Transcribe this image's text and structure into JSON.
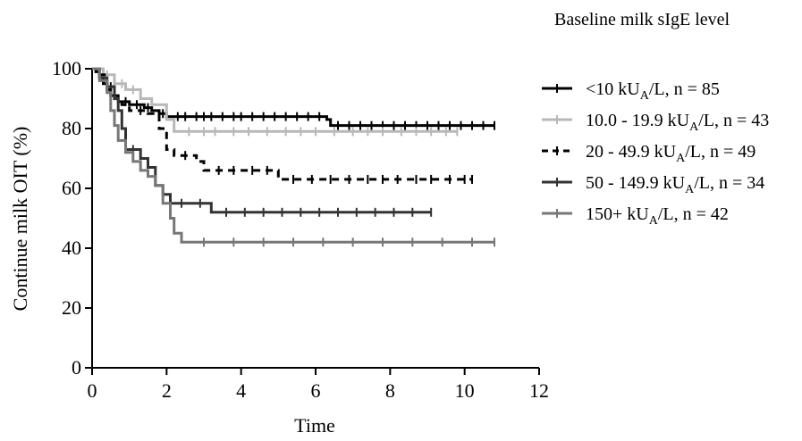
{
  "chart_data": {
    "type": "line",
    "subtype": "kaplan-meier",
    "legend_title": "Baseline milk sIgE level",
    "xlabel": "Time",
    "ylabel": "Continue milk OIT (%)",
    "xlim": [
      0,
      12
    ],
    "ylim": [
      0,
      100
    ],
    "xticks": [
      0,
      2,
      4,
      6,
      8,
      10,
      12
    ],
    "yticks": [
      0,
      20,
      40,
      60,
      80,
      100
    ],
    "grid": false,
    "legend_position": "right",
    "series": [
      {
        "name_main": "<10 kU",
        "name_sub": "A",
        "name_rest": "/L, n = 85",
        "color": "#000000",
        "dash": "none",
        "width": 3,
        "steps": [
          [
            0,
            100
          ],
          [
            0.1,
            99
          ],
          [
            0.2,
            97
          ],
          [
            0.3,
            95
          ],
          [
            0.4,
            93
          ],
          [
            0.5,
            91
          ],
          [
            0.7,
            89
          ],
          [
            1.0,
            88
          ],
          [
            1.4,
            87
          ],
          [
            1.6,
            86
          ],
          [
            1.8,
            85
          ],
          [
            2.0,
            84
          ],
          [
            6.3,
            83
          ],
          [
            6.4,
            81
          ],
          [
            10.8,
            81
          ]
        ],
        "censors": [
          0.6,
          0.9,
          1.2,
          1.5,
          1.9,
          2.3,
          2.5,
          2.8,
          3.0,
          3.2,
          3.5,
          3.8,
          4.0,
          4.3,
          4.6,
          4.9,
          5.2,
          5.5,
          5.8,
          6.1,
          6.6,
          6.9,
          7.2,
          7.5,
          7.8,
          8.1,
          8.4,
          8.7,
          9.0,
          9.3,
          9.6,
          9.9,
          10.2,
          10.5,
          10.8
        ]
      },
      {
        "name_main": "10.0 - 19.9 kU",
        "name_sub": "A",
        "name_rest": "/L, n = 43",
        "color": "#b8b8b8",
        "dash": "none",
        "width": 3,
        "steps": [
          [
            0,
            100
          ],
          [
            0.3,
            98
          ],
          [
            0.6,
            95
          ],
          [
            0.9,
            93
          ],
          [
            1.3,
            90
          ],
          [
            1.6,
            88
          ],
          [
            2.0,
            83
          ],
          [
            2.2,
            79
          ],
          [
            9.8,
            79
          ]
        ],
        "censors": [
          0.4,
          0.8,
          1.1,
          2.6,
          3.0,
          3.3,
          3.8,
          4.2,
          4.7,
          5.2,
          5.6,
          6.0,
          6.5,
          7.0,
          7.4,
          7.8,
          8.3,
          8.7,
          9.1,
          9.5,
          9.8
        ]
      },
      {
        "name_main": "20 - 49.9 kU",
        "name_sub": "A",
        "name_rest": "/L, n = 49",
        "color": "#000000",
        "dash": "8,6",
        "width": 3,
        "steps": [
          [
            0,
            100
          ],
          [
            0.2,
            98
          ],
          [
            0.4,
            94
          ],
          [
            0.6,
            90
          ],
          [
            0.8,
            88
          ],
          [
            1.0,
            86
          ],
          [
            1.5,
            85
          ],
          [
            1.8,
            80
          ],
          [
            2.0,
            73
          ],
          [
            2.2,
            71
          ],
          [
            2.8,
            69
          ],
          [
            3.0,
            66
          ],
          [
            5.0,
            63
          ],
          [
            10.2,
            63
          ]
        ],
        "censors": [
          0.5,
          1.3,
          2.5,
          3.4,
          3.8,
          4.3,
          4.7,
          5.4,
          5.9,
          6.4,
          6.9,
          7.4,
          7.8,
          8.2,
          8.7,
          9.1,
          9.6,
          10.0,
          10.2
        ]
      },
      {
        "name_main": "50 - 149.9 kU",
        "name_sub": "A",
        "name_rest": "/L, n = 34",
        "color": "#333333",
        "dash": "none",
        "width": 3,
        "steps": [
          [
            0,
            100
          ],
          [
            0.2,
            97
          ],
          [
            0.4,
            94
          ],
          [
            0.6,
            90
          ],
          [
            0.7,
            86
          ],
          [
            0.8,
            80
          ],
          [
            0.9,
            73
          ],
          [
            1.3,
            70
          ],
          [
            1.5,
            67
          ],
          [
            1.7,
            61
          ],
          [
            1.9,
            58
          ],
          [
            2.1,
            55
          ],
          [
            3.2,
            52
          ],
          [
            9.1,
            52
          ]
        ],
        "censors": [
          1.1,
          2.4,
          2.9,
          3.6,
          4.1,
          4.6,
          5.1,
          5.6,
          6.1,
          6.6,
          7.1,
          7.6,
          8.1,
          8.6,
          9.1
        ]
      },
      {
        "name_main": "150+ kU",
        "name_sub": "A",
        "name_rest": "/L, n = 42",
        "color": "#777777",
        "dash": "none",
        "width": 3,
        "steps": [
          [
            0,
            100
          ],
          [
            0.2,
            96
          ],
          [
            0.4,
            92
          ],
          [
            0.5,
            86
          ],
          [
            0.6,
            81
          ],
          [
            0.7,
            76
          ],
          [
            0.9,
            72
          ],
          [
            1.1,
            69
          ],
          [
            1.3,
            66
          ],
          [
            1.5,
            64
          ],
          [
            1.7,
            61
          ],
          [
            1.9,
            55
          ],
          [
            2.1,
            50
          ],
          [
            2.2,
            45
          ],
          [
            2.4,
            42
          ],
          [
            10.8,
            42
          ]
        ],
        "censors": [
          3.0,
          3.8,
          4.6,
          5.4,
          6.2,
          7.0,
          7.8,
          8.6,
          9.4,
          10.2,
          10.8
        ]
      }
    ]
  }
}
